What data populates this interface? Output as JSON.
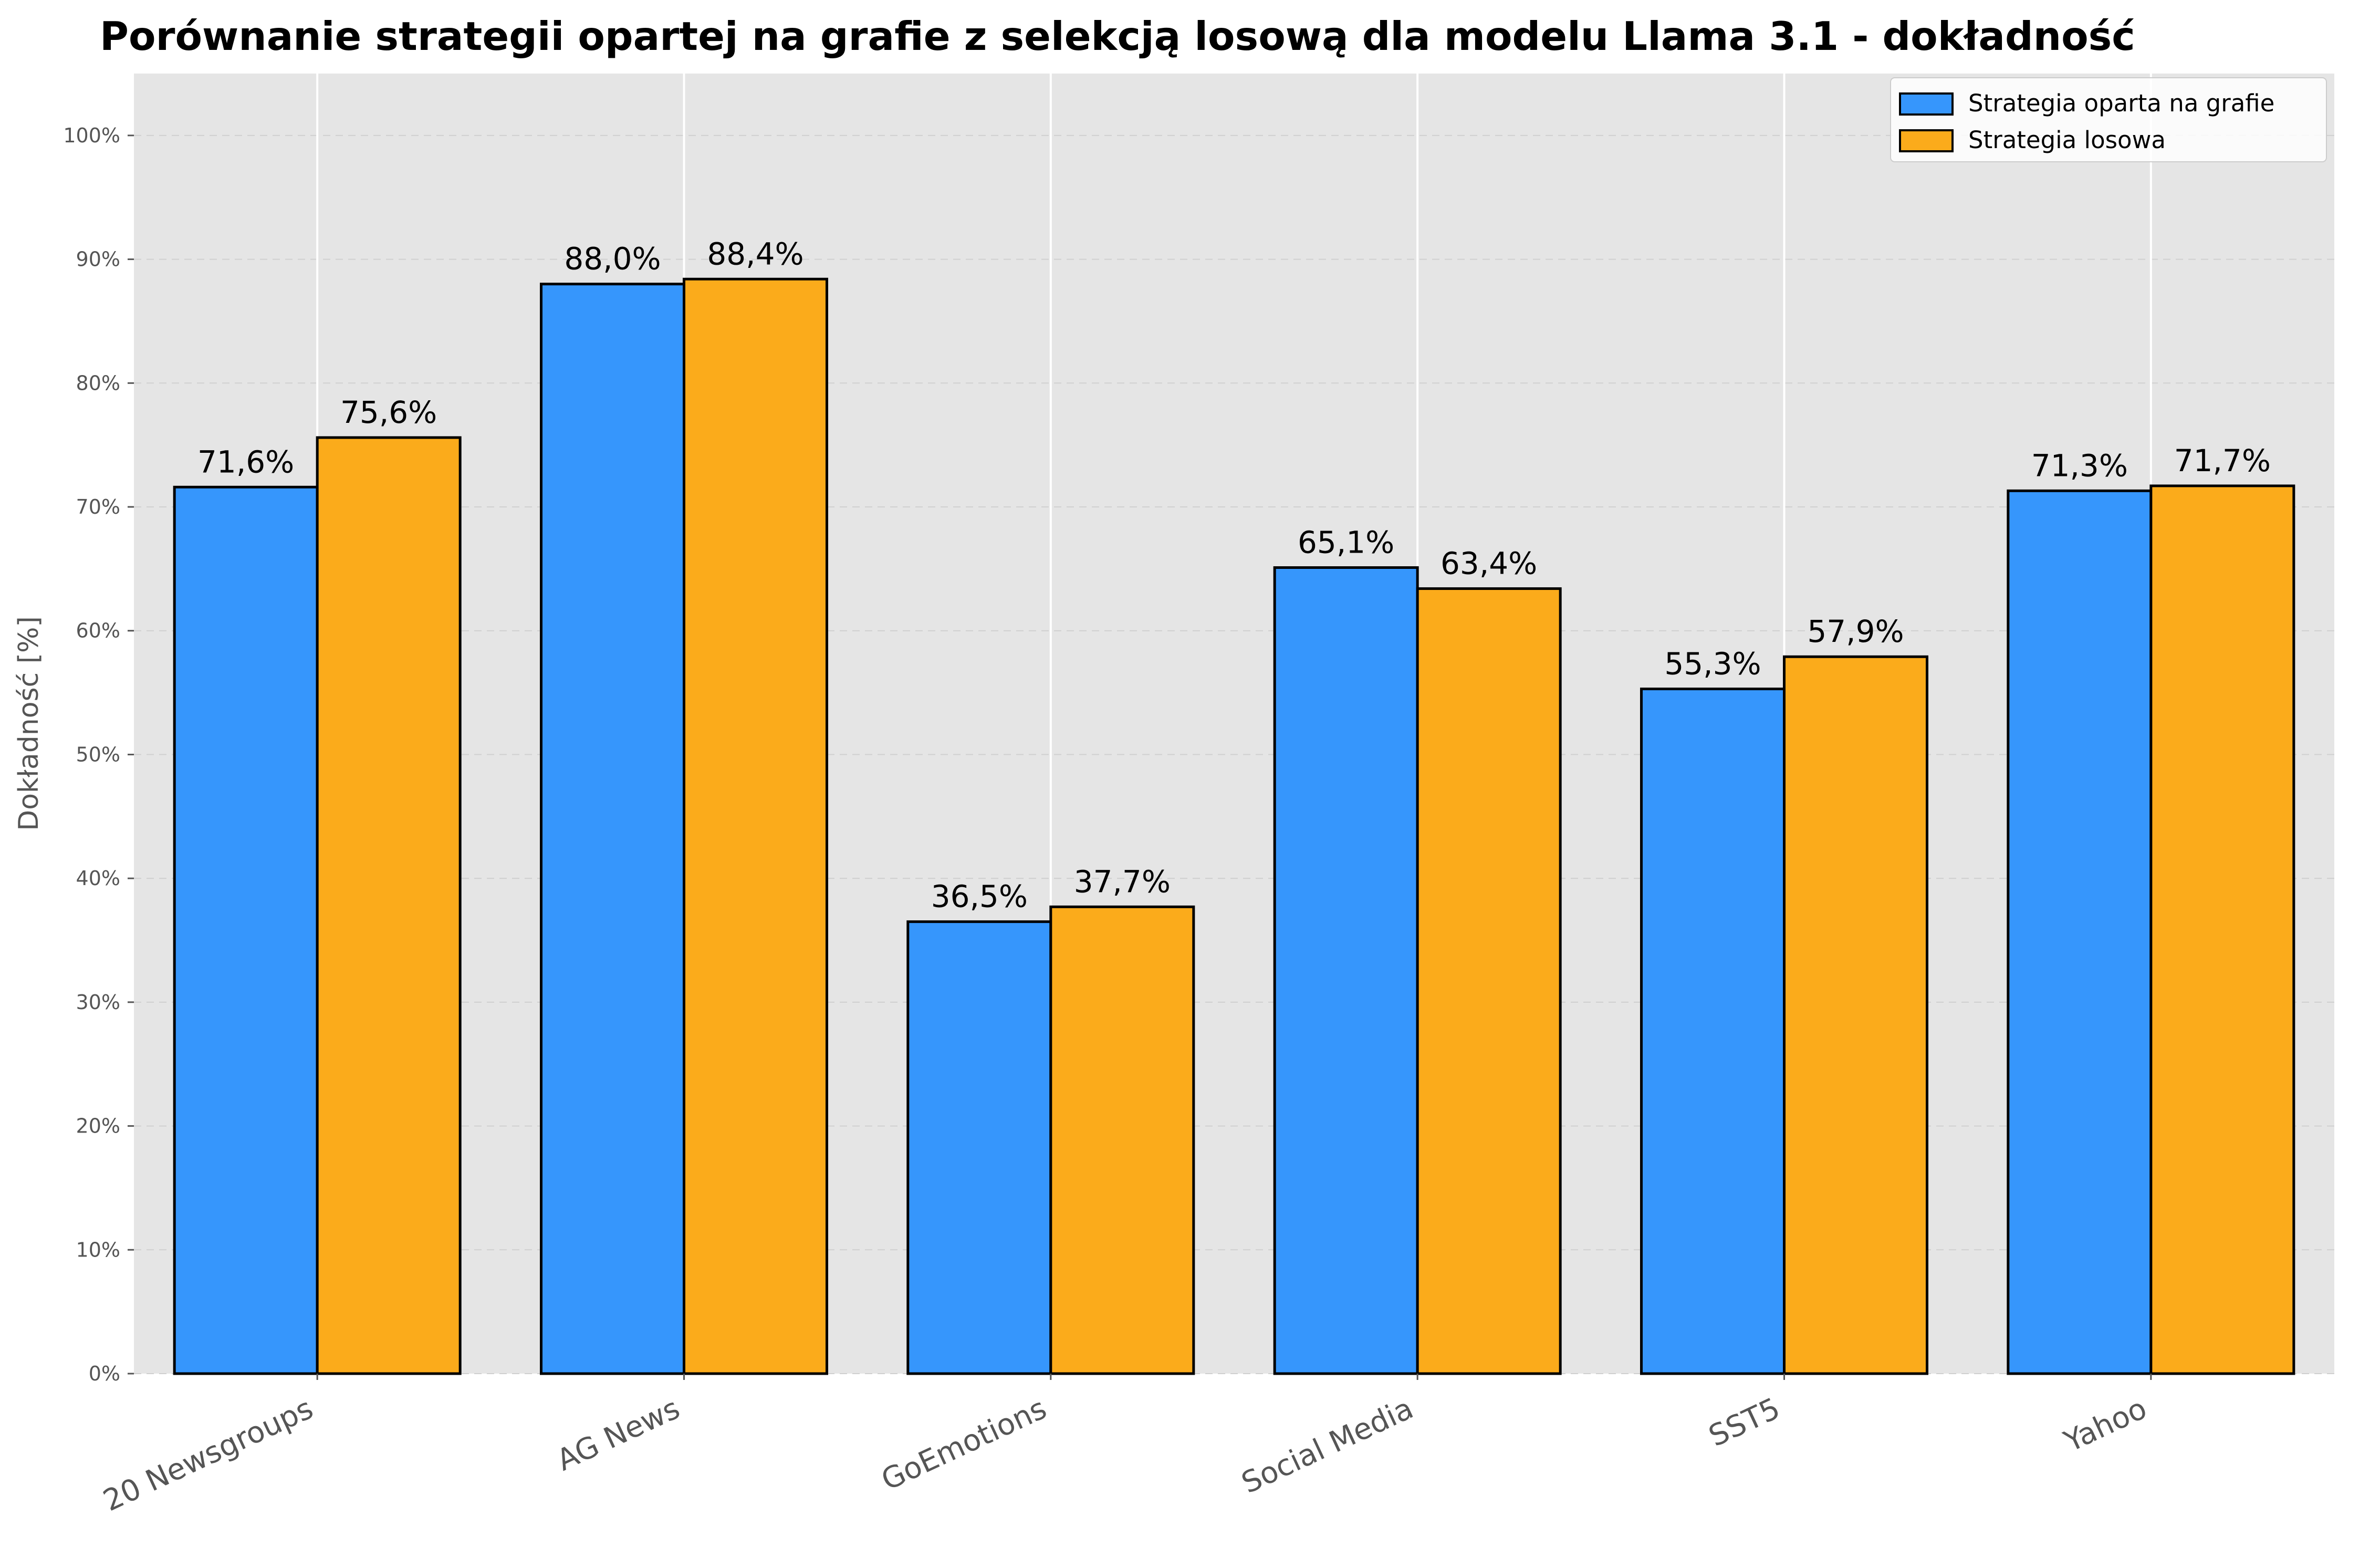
{
  "chart_data": {
    "type": "bar",
    "title": "Porównanie strategii opartej na grafie z selekcją losową dla modelu Llama 3.1 - dokładność",
    "xlabel": "",
    "ylabel": "Dokładność [%]",
    "ylim": [
      0,
      105
    ],
    "yticks": [
      0,
      10,
      20,
      30,
      40,
      50,
      60,
      70,
      80,
      90,
      100
    ],
    "ytick_labels": [
      "0%",
      "10%",
      "20%",
      "30%",
      "40%",
      "50%",
      "60%",
      "70%",
      "80%",
      "90%",
      "100%"
    ],
    "categories": [
      "20 Newsgroups",
      "AG News",
      "GoEmotions",
      "Social Media",
      "SST5",
      "Yahoo"
    ],
    "series": [
      {
        "name": "Strategia oparta na grafie",
        "color": "#3696fc",
        "values": [
          71.6,
          88.0,
          36.5,
          65.1,
          55.3,
          71.3
        ],
        "labels": [
          "71,6%",
          "88,0%",
          "36,5%",
          "65,1%",
          "55,3%",
          "71,3%"
        ]
      },
      {
        "name": "Strategia losowa",
        "color": "#fbab1b",
        "values": [
          75.6,
          88.4,
          37.7,
          63.4,
          57.9,
          71.7
        ],
        "labels": [
          "75,6%",
          "88,4%",
          "37,7%",
          "63,4%",
          "57,9%",
          "71,7%"
        ]
      }
    ],
    "grid": true,
    "legend_position": "top-right",
    "background": "#e5e5e5"
  }
}
